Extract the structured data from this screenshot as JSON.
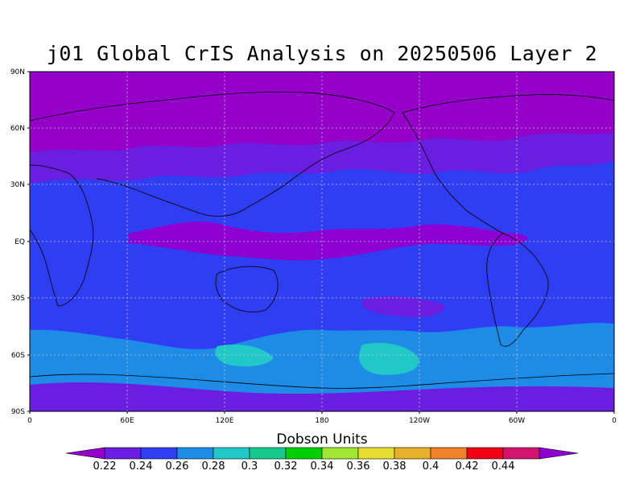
{
  "title": "j01 Global CrIS Analysis on 20250506 Layer 2",
  "units": "Dobson Units",
  "y_axis_labels": [
    "90N",
    "60N",
    "30N",
    "EQ",
    "30S",
    "60S",
    "90S"
  ],
  "x_axis_labels": [
    "0",
    "60E",
    "120E",
    "180",
    "120W",
    "60W",
    "0"
  ],
  "colorbar": {
    "labels": [
      "0.22",
      "0.24",
      "0.26",
      "0.28",
      "0.3",
      "0.32",
      "0.34",
      "0.36",
      "0.38",
      "0.4",
      "0.42",
      "0.44"
    ],
    "colors": [
      "#9400c8",
      "#6a1ee0",
      "#2f3ef2",
      "#1e8ce6",
      "#22c8c8",
      "#16c88c",
      "#00d000",
      "#a0e632",
      "#e6dc32",
      "#e6af2d",
      "#f0822a",
      "#f00014",
      "#d2146e",
      "#8c00d2"
    ]
  },
  "map": {
    "field_colors": {
      "arctic": "#9400c8",
      "subarctic": "#6a1ee0",
      "midlat": "#2f3ef2",
      "tropics": "#8c00d2",
      "south_band": "#1e8ce6",
      "teal_patch": "#22c8c8",
      "antarctic": "#6a1ee0"
    }
  }
}
